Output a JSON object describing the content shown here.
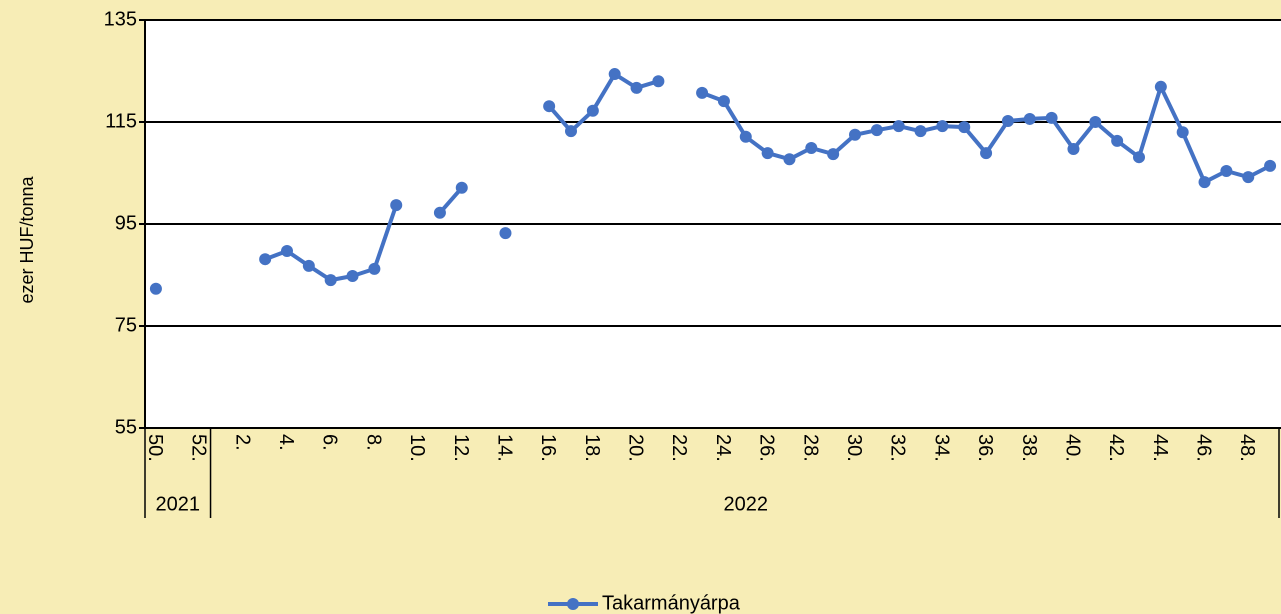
{
  "chart_data": {
    "type": "line",
    "y_label": "ezer HUF/tonna",
    "categories": [
      "50.",
      null,
      "52.",
      null,
      "2.",
      null,
      "4.",
      null,
      "6.",
      null,
      "8.",
      null,
      "10.",
      null,
      "12.",
      null,
      "14.",
      null,
      "16.",
      null,
      "18.",
      null,
      "20.",
      null,
      "22.",
      null,
      "24.",
      null,
      "26.",
      null,
      "28.",
      null,
      "30.",
      null,
      "32.",
      null,
      "34.",
      null,
      "36.",
      null,
      "38.",
      null,
      "40.",
      null,
      "42.",
      null,
      "44.",
      null,
      "46.",
      null,
      "48.",
      null
    ],
    "groups": [
      {
        "label": "2021",
        "span": 3
      },
      {
        "label": "2022",
        "span": 49
      }
    ],
    "series": [
      {
        "name": "Takarmányárpa",
        "color": "#4472c4",
        "values": [
          82.3,
          null,
          null,
          null,
          null,
          88.1,
          89.7,
          86.8,
          84.0,
          84.8,
          86.2,
          98.7,
          null,
          97.2,
          102.1,
          null,
          93.2,
          null,
          118.1,
          113.2,
          117.2,
          124.4,
          121.7,
          123.0,
          null,
          120.7,
          119.1,
          112.1,
          108.9,
          107.7,
          109.9,
          108.7,
          112.5,
          113.4,
          114.2,
          113.2,
          114.2,
          114.0,
          108.9,
          115.2,
          115.6,
          115.8,
          109.7,
          115.0,
          111.3,
          108.1,
          121.9,
          113.0,
          103.2,
          105.4,
          104.2,
          106.4
        ]
      }
    ],
    "ylim": [
      55,
      135
    ],
    "yticks": [
      55,
      75,
      95,
      115,
      135
    ],
    "grid": true,
    "legend": "bottom"
  }
}
